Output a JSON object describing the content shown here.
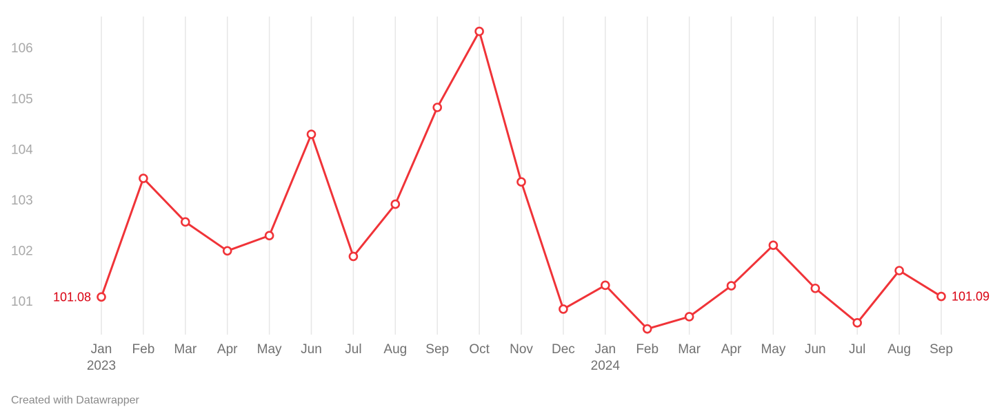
{
  "chart_data": {
    "type": "line",
    "title": "",
    "xlabel": "",
    "ylabel": "",
    "x": [
      "2023-01",
      "2023-02",
      "2023-03",
      "2023-04",
      "2023-05",
      "2023-06",
      "2023-07",
      "2023-08",
      "2023-09",
      "2023-10",
      "2023-11",
      "2023-12",
      "2024-01",
      "2024-02",
      "2024-03",
      "2024-04",
      "2024-05",
      "2024-06",
      "2024-07",
      "2024-08",
      "2024-09"
    ],
    "x_tick_labels": [
      "Jan",
      "Feb",
      "Mar",
      "Apr",
      "May",
      "Jun",
      "Jul",
      "Aug",
      "Sep",
      "Oct",
      "Nov",
      "Dec",
      "Jan",
      "Feb",
      "Mar",
      "Apr",
      "May",
      "Jun",
      "Jul",
      "Aug",
      "Sep"
    ],
    "x_year_labels": [
      {
        "index": 0,
        "label": "2023"
      },
      {
        "index": 12,
        "label": "2024"
      }
    ],
    "series": [
      {
        "values": [
          101.08,
          103.42,
          102.56,
          101.99,
          102.29,
          104.29,
          101.88,
          102.91,
          104.82,
          106.32,
          103.35,
          100.84,
          101.31,
          100.45,
          100.69,
          101.3,
          102.1,
          101.25,
          100.57,
          101.6,
          101.09
        ],
        "color": "#f03338"
      }
    ],
    "y_ticks": [
      101,
      102,
      103,
      104,
      105,
      106
    ],
    "ylim": [
      100.35,
      106.6
    ],
    "grid": "vertical",
    "end_labels": {
      "first": "101.08",
      "last": "101.09",
      "color": "#d90011"
    }
  },
  "footer": {
    "credit": "Created with Datawrapper"
  }
}
